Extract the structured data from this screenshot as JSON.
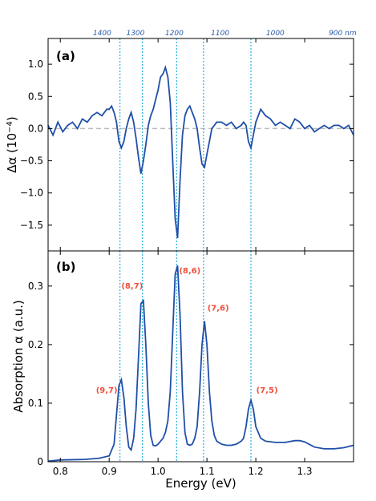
{
  "chart_data": {
    "type": "line",
    "xlabel": "Energy (eV)",
    "xlim": [
      0.775,
      1.4
    ],
    "x_ticks": [
      0.8,
      0.9,
      1.0,
      1.1,
      1.2,
      1.3
    ],
    "x_tick_labels": [
      "0.8",
      "0.9",
      "1.0",
      "1.1",
      "1.2",
      "1.3"
    ],
    "top_axis": {
      "tick_labels": [
        "1400",
        "1300",
        "1200",
        "1100",
        "1000",
        "900 nm"
      ],
      "tick_energies": [
        0.8856,
        0.9537,
        1.0332,
        1.1271,
        1.2398,
        1.3776
      ]
    },
    "vlines_x": [
      0.922,
      0.968,
      1.038,
      1.093,
      1.19
    ],
    "colors": {
      "line": "#1f4fa8",
      "vline": "#38b6e0",
      "label": "#f0503a",
      "zero": "#bbbbbb",
      "top_tick_text": "#2a5aa8"
    },
    "panels": [
      {
        "label": "(a)",
        "ylabel_main": "Δα (10",
        "ylabel_exp": "−4",
        "ylabel_tail": ")",
        "ylim": [
          -1.9,
          1.4
        ],
        "y_ticks": [
          -1.5,
          -1.0,
          -0.5,
          0.0,
          0.5,
          1.0
        ],
        "y_tick_labels": [
          "−1.5",
          "−1.0",
          "−0.5",
          "0.0",
          "0.5",
          "1.0"
        ],
        "zero_line": true,
        "series": [
          {
            "x": [
              0.775,
              0.785,
              0.795,
              0.805,
              0.815,
              0.825,
              0.835,
              0.845,
              0.855,
              0.865,
              0.875,
              0.885,
              0.895,
              0.9,
              0.905,
              0.91,
              0.915,
              0.92,
              0.925,
              0.93,
              0.935,
              0.94,
              0.945,
              0.95,
              0.955,
              0.96,
              0.965,
              0.97,
              0.975,
              0.98,
              0.985,
              0.99,
              0.995,
              1.0,
              1.005,
              1.01,
              1.015,
              1.02,
              1.025,
              1.03,
              1.035,
              1.04,
              1.045,
              1.05,
              1.055,
              1.06,
              1.065,
              1.07,
              1.075,
              1.08,
              1.085,
              1.09,
              1.095,
              1.1,
              1.105,
              1.11,
              1.115,
              1.12,
              1.13,
              1.14,
              1.15,
              1.16,
              1.17,
              1.175,
              1.18,
              1.185,
              1.19,
              1.195,
              1.2,
              1.21,
              1.22,
              1.23,
              1.24,
              1.25,
              1.26,
              1.27,
              1.28,
              1.29,
              1.3,
              1.31,
              1.32,
              1.33,
              1.34,
              1.35,
              1.36,
              1.37,
              1.38,
              1.39,
              1.4
            ],
            "y": [
              0.05,
              -0.1,
              0.1,
              -0.05,
              0.05,
              0.1,
              0.0,
              0.15,
              0.1,
              0.2,
              0.25,
              0.2,
              0.3,
              0.3,
              0.35,
              0.25,
              0.1,
              -0.2,
              -0.3,
              -0.2,
              0.0,
              0.15,
              0.25,
              0.1,
              -0.15,
              -0.45,
              -0.7,
              -0.5,
              -0.25,
              0.05,
              0.2,
              0.3,
              0.45,
              0.6,
              0.8,
              0.85,
              0.95,
              0.8,
              0.4,
              -0.5,
              -1.4,
              -1.7,
              -0.8,
              -0.1,
              0.2,
              0.3,
              0.35,
              0.25,
              0.15,
              0.0,
              -0.3,
              -0.55,
              -0.6,
              -0.4,
              -0.2,
              0.0,
              0.05,
              0.1,
              0.1,
              0.05,
              0.1,
              0.0,
              0.05,
              0.1,
              0.05,
              -0.2,
              -0.3,
              -0.1,
              0.1,
              0.3,
              0.2,
              0.15,
              0.05,
              0.1,
              0.05,
              0.0,
              0.15,
              0.1,
              0.0,
              0.05,
              -0.05,
              0.0,
              0.05,
              0.0,
              0.05,
              0.05,
              0.0,
              0.05,
              -0.1
            ]
          }
        ]
      },
      {
        "label": "(b)",
        "ylabel": "Absorption α (a.u.)",
        "ylim": [
          0.0,
          0.36
        ],
        "y_ticks": [
          0.0,
          0.1,
          0.2,
          0.3
        ],
        "y_tick_labels": [
          "0",
          "0.1",
          "0.2",
          "0.3"
        ],
        "peak_labels": [
          {
            "text": "(9,7)",
            "x": 0.895,
            "y": 0.118
          },
          {
            "text": "(8,7)",
            "x": 0.947,
            "y": 0.296
          },
          {
            "text": "(8,6)",
            "x": 1.065,
            "y": 0.322
          },
          {
            "text": "(7,6)",
            "x": 1.123,
            "y": 0.258
          },
          {
            "text": "(7,5)",
            "x": 1.223,
            "y": 0.118
          }
        ],
        "series": [
          {
            "x": [
              0.775,
              0.8,
              0.85,
              0.88,
              0.9,
              0.91,
              0.915,
              0.92,
              0.925,
              0.93,
              0.935,
              0.94,
              0.945,
              0.95,
              0.955,
              0.96,
              0.965,
              0.97,
              0.975,
              0.98,
              0.985,
              0.99,
              0.995,
              1.0,
              1.005,
              1.01,
              1.015,
              1.02,
              1.025,
              1.03,
              1.035,
              1.04,
              1.045,
              1.05,
              1.055,
              1.06,
              1.065,
              1.07,
              1.075,
              1.08,
              1.085,
              1.09,
              1.095,
              1.1,
              1.105,
              1.11,
              1.115,
              1.12,
              1.13,
              1.14,
              1.15,
              1.16,
              1.17,
              1.175,
              1.18,
              1.185,
              1.19,
              1.195,
              1.2,
              1.21,
              1.22,
              1.24,
              1.26,
              1.28,
              1.29,
              1.3,
              1.32,
              1.34,
              1.36,
              1.38,
              1.4
            ],
            "y": [
              0.001,
              0.003,
              0.004,
              0.006,
              0.01,
              0.03,
              0.08,
              0.13,
              0.14,
              0.11,
              0.06,
              0.025,
              0.02,
              0.04,
              0.09,
              0.18,
              0.27,
              0.275,
              0.2,
              0.1,
              0.045,
              0.028,
              0.027,
              0.03,
              0.035,
              0.04,
              0.05,
              0.07,
              0.12,
              0.22,
              0.32,
              0.335,
              0.25,
              0.12,
              0.05,
              0.03,
              0.028,
              0.03,
              0.04,
              0.06,
              0.12,
              0.2,
              0.24,
              0.2,
              0.12,
              0.07,
              0.045,
              0.035,
              0.03,
              0.028,
              0.028,
              0.03,
              0.035,
              0.04,
              0.06,
              0.09,
              0.105,
              0.09,
              0.06,
              0.04,
              0.035,
              0.033,
              0.033,
              0.036,
              0.036,
              0.034,
              0.025,
              0.022,
              0.022,
              0.024,
              0.028
            ]
          }
        ]
      }
    ]
  }
}
